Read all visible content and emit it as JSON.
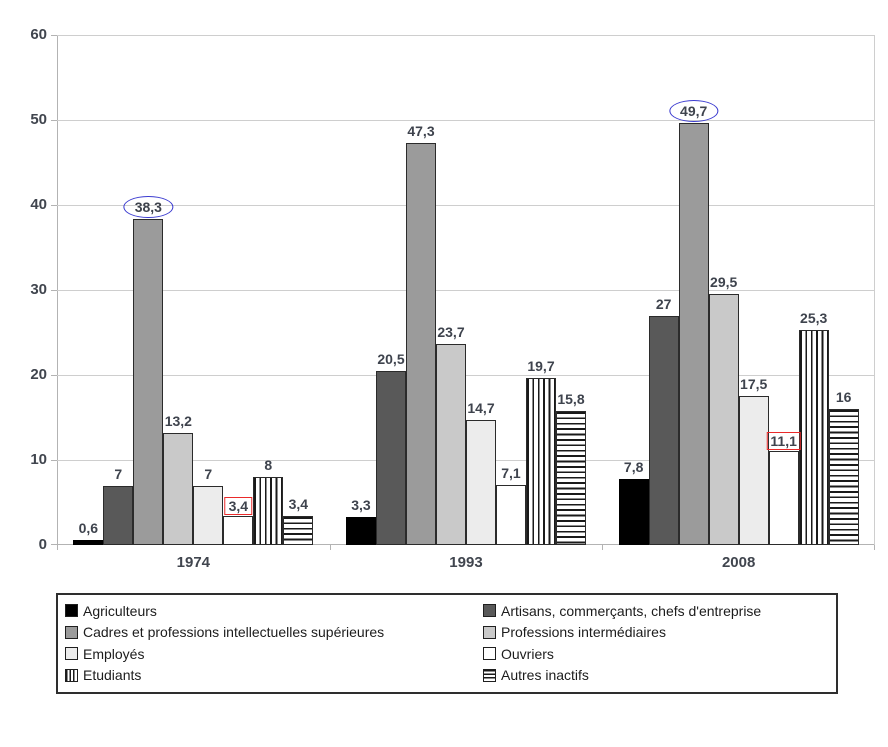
{
  "chart_data": {
    "type": "bar",
    "title": "",
    "xlabel": "",
    "ylabel": "",
    "categories": [
      "1974",
      "1993",
      "2008"
    ],
    "y_axis": {
      "min": 0,
      "max": 60,
      "ticks": [
        0,
        10,
        20,
        30,
        40,
        50,
        60
      ]
    },
    "grid": true,
    "legend_position": "bottom",
    "series": [
      {
        "name": "Agriculteurs",
        "pattern": "solid",
        "fill": "#000000",
        "values": [
          0.6,
          3.3,
          7.8
        ],
        "labels": [
          "0,6",
          "3,3",
          "7,8"
        ]
      },
      {
        "name": "Artisans, commerçants, chefs d'entreprise",
        "pattern": "solid",
        "fill": "#595959",
        "values": [
          7,
          20.5,
          27
        ],
        "labels": [
          "7",
          "20,5",
          "27"
        ]
      },
      {
        "name": "Cadres et professions intellectuelles supérieures",
        "pattern": "solid",
        "fill": "#9b9b9b",
        "values": [
          38.3,
          47.3,
          49.7
        ],
        "labels": [
          "38,3",
          "47,3",
          "49,7"
        ]
      },
      {
        "name": "Professions intermédiaires",
        "pattern": "solid",
        "fill": "#c9c9c9",
        "values": [
          13.2,
          23.7,
          29.5
        ],
        "labels": [
          "13,2",
          "23,7",
          "29,5"
        ]
      },
      {
        "name": "Employés",
        "pattern": "solid",
        "fill": "#ececec",
        "values": [
          7,
          14.7,
          17.5
        ],
        "labels": [
          "7",
          "14,7",
          "17,5"
        ]
      },
      {
        "name": "Ouvriers",
        "pattern": "solid",
        "fill": "#ffffff",
        "values": [
          3.4,
          7.1,
          11.1
        ],
        "labels": [
          "3,4",
          "7,1",
          "11,1"
        ]
      },
      {
        "name": "Etudiants",
        "pattern": "vertical-stripes",
        "fill": "#ffffff",
        "values": [
          8,
          19.7,
          25.3
        ],
        "labels": [
          "8",
          "19,7",
          "25,3"
        ]
      },
      {
        "name": "Autres inactifs",
        "pattern": "horizontal-stripes",
        "fill": "#ffffff",
        "values": [
          3.4,
          15.8,
          16
        ],
        "labels": [
          "3,4",
          "15,8",
          "16"
        ]
      }
    ],
    "annotations": [
      {
        "category": "1974",
        "series": "Cadres et professions intellectuelles supérieures",
        "label": "38,3",
        "shape": "ellipse",
        "color": "#3c3cd0"
      },
      {
        "category": "1974",
        "series": "Ouvriers",
        "label": "3,4",
        "shape": "rect",
        "color": "#ea2a2a"
      },
      {
        "category": "2008",
        "series": "Cadres et professions intellectuelles supérieures",
        "label": "49,7",
        "shape": "ellipse",
        "color": "#3c3cd0"
      },
      {
        "category": "2008",
        "series": "Ouvriers",
        "label": "11,1",
        "shape": "rect",
        "color": "#ea2a2a"
      }
    ]
  },
  "style_colors": {
    "gridline": "#cecece",
    "axis": "#b3b3b3",
    "bar_border": "#2b2b2b",
    "stripe_line": "#1a1a1a",
    "value_text": "#3e434d",
    "annotation_blue": "#3c3cd0",
    "annotation_red": "#ea2a2a"
  }
}
